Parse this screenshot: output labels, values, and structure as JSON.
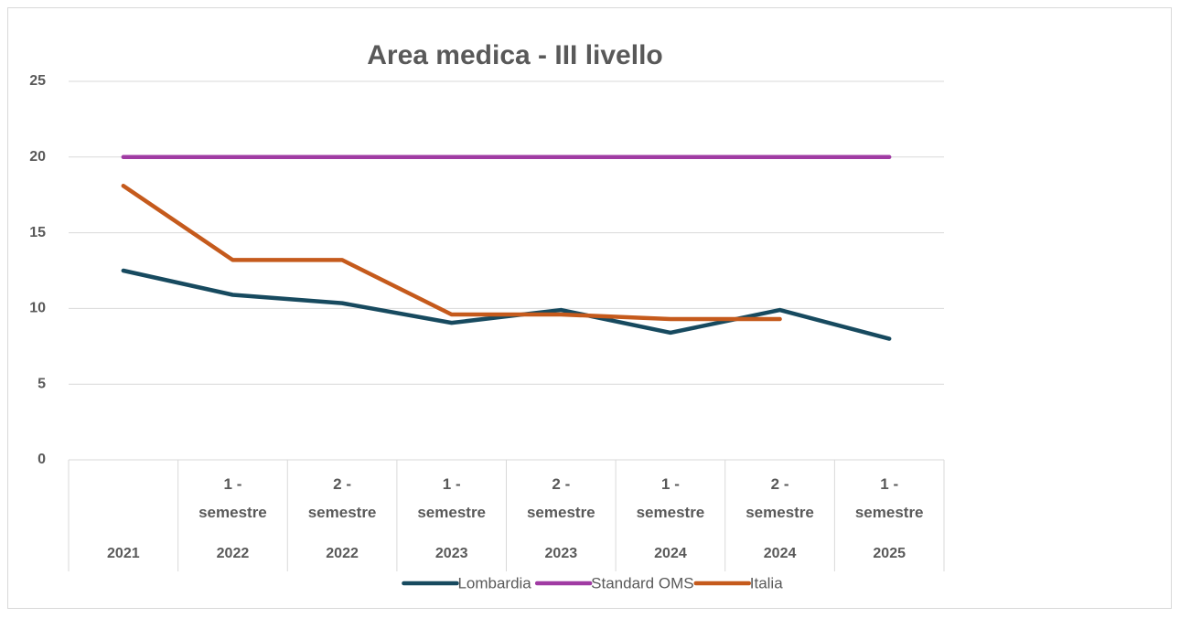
{
  "chart_data": {
    "type": "line",
    "title": "Area medica - III livello",
    "categories": [
      "2021",
      "2022",
      "2022",
      "2023",
      "2023",
      "2024",
      "2024",
      "2025"
    ],
    "semesters": [
      null,
      "1 - semestre",
      "2 - semestre",
      "1 - semestre",
      "2 - semestre",
      "1 - semestre",
      "2 - semestre",
      "1 - semestre"
    ],
    "series": [
      {
        "name": "Lombardia",
        "color": "#174a5f",
        "values": [
          12.5,
          10.9,
          10.35,
          9.05,
          9.9,
          8.4,
          9.9,
          8.0
        ]
      },
      {
        "name": "Standard OMS",
        "color": "#a03ba3",
        "values": [
          20,
          20,
          20,
          20,
          20,
          20,
          20,
          20
        ]
      },
      {
        "name": "Italia",
        "color": "#c55a1c",
        "values": [
          18.1,
          13.2,
          13.2,
          9.6,
          9.6,
          9.3,
          9.3,
          null
        ]
      }
    ],
    "ylim": [
      0,
      25
    ],
    "yticks": [
      0,
      5,
      10,
      15,
      20,
      25
    ],
    "grid": true,
    "legend": "bottom"
  }
}
